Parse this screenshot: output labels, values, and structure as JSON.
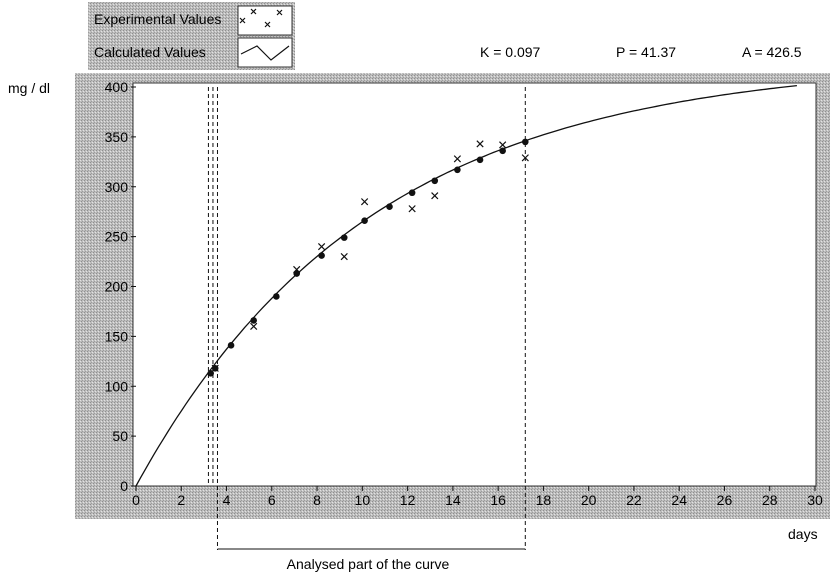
{
  "chart_data": {
    "type": "scatter",
    "legend": {
      "placement": "top-left",
      "entries": [
        {
          "label": "Experimental Values",
          "marker": "cross"
        },
        {
          "label": "Calculated Values",
          "marker": "line"
        }
      ]
    },
    "parameters": [
      {
        "text": "K = 0.097"
      },
      {
        "text": "P = 41.37"
      },
      {
        "text": "A = 426.5"
      }
    ],
    "ylabel": "mg / dl",
    "xlabel": "days",
    "xlim": [
      0,
      30
    ],
    "ylim": [
      0,
      400
    ],
    "xticks": [
      0,
      2,
      4,
      6,
      8,
      10,
      12,
      14,
      16,
      18,
      20,
      22,
      24,
      26,
      28,
      30
    ],
    "yticks": [
      0,
      50,
      100,
      150,
      200,
      250,
      300,
      350,
      400
    ],
    "grid": false,
    "series": [
      {
        "name": "Experimental Values",
        "marker": "cross",
        "x": [
          3.5,
          5.2,
          7.1,
          8.2,
          9.2,
          10.1,
          12.2,
          13.2,
          14.2,
          15.2,
          16.2,
          17.2
        ],
        "y": [
          118,
          160,
          217,
          240,
          230,
          285,
          278,
          291,
          328,
          343,
          342,
          329
        ]
      },
      {
        "name": "Calculated Values",
        "type": "line",
        "model": {
          "A": 426.5,
          "P": 41.37,
          "K": 0.097
        },
        "xrange": [
          0,
          29.2
        ]
      },
      {
        "marker": "dot",
        "x": [
          3.3,
          3.5,
          4.2,
          5.2,
          6.2,
          7.1,
          8.2,
          9.2,
          10.1,
          11.2,
          12.2,
          13.2,
          14.2,
          15.2,
          16.2,
          17.2
        ],
        "y": [
          113,
          118,
          141,
          166,
          190,
          213,
          231,
          249,
          266,
          280,
          294,
          306,
          317,
          327,
          336,
          345
        ]
      }
    ],
    "vlines": [
      3.2,
      3.4,
      3.6,
      17.2
    ],
    "analysis_range": {
      "from": 3.6,
      "to": 17.2,
      "label": "Analysed part of the curve"
    }
  }
}
